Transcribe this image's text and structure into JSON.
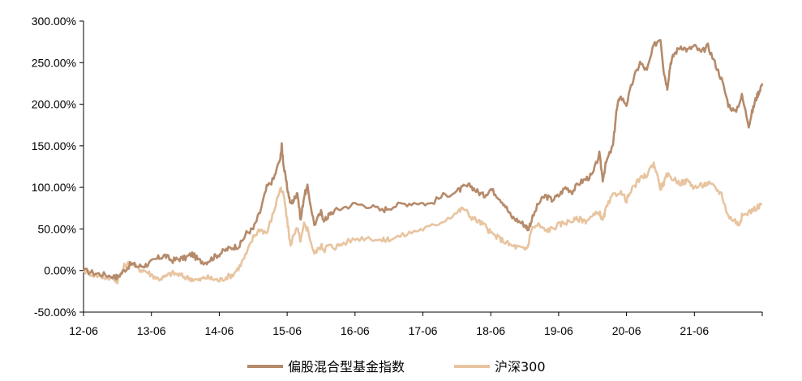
{
  "colors": {
    "series1": "#b58a6a",
    "series2": "#e8c4a0",
    "axis": "#000000"
  },
  "chart_data": {
    "type": "line",
    "title": "",
    "xlabel": "",
    "ylabel": "",
    "x_tick_labels": [
      "12-06",
      "13-06",
      "14-06",
      "15-06",
      "16-06",
      "17-06",
      "18-06",
      "19-06",
      "20-06",
      "21-06"
    ],
    "y_tick_labels": [
      "300.00%",
      "250.00%",
      "200.00%",
      "150.00%",
      "100.00%",
      "50.00%",
      "0.00%",
      "-50.00%"
    ],
    "ylim": [
      -50,
      300
    ],
    "xlim": [
      2012.5,
      2022.5
    ],
    "grid": false,
    "legend_placement": "bottom-center",
    "series": [
      {
        "name": "偏股混合型基金指数",
        "x": [
          2012.5,
          2012.65,
          2012.8,
          2012.95,
          2013.0,
          2013.1,
          2013.2,
          2013.3,
          2013.4,
          2013.5,
          2013.6,
          2013.7,
          2013.8,
          2013.9,
          2014.0,
          2014.1,
          2014.2,
          2014.3,
          2014.4,
          2014.5,
          2014.6,
          2014.7,
          2014.8,
          2014.9,
          2015.0,
          2015.1,
          2015.2,
          2015.3,
          2015.4,
          2015.42,
          2015.45,
          2015.5,
          2015.55,
          2015.6,
          2015.65,
          2015.7,
          2015.75,
          2015.8,
          2015.9,
          2016.0,
          2016.05,
          2016.1,
          2016.15,
          2016.3,
          2016.5,
          2016.7,
          2016.9,
          2017.0,
          2017.2,
          2017.4,
          2017.6,
          2017.8,
          2018.0,
          2018.1,
          2018.2,
          2018.3,
          2018.4,
          2018.5,
          2018.6,
          2018.7,
          2018.8,
          2018.9,
          2019.0,
          2019.05,
          2019.1,
          2019.2,
          2019.3,
          2019.4,
          2019.5,
          2019.6,
          2019.7,
          2019.8,
          2019.9,
          2020.0,
          2020.1,
          2020.15,
          2020.2,
          2020.3,
          2020.35,
          2020.4,
          2020.5,
          2020.6,
          2020.7,
          2020.8,
          2020.9,
          2021.0,
          2021.05,
          2021.1,
          2021.15,
          2021.2,
          2021.3,
          2021.4,
          2021.5,
          2021.6,
          2021.7,
          2021.8,
          2021.9,
          2022.0,
          2022.1,
          2022.2,
          2022.3,
          2022.35,
          2022.4,
          2022.45,
          2022.5
        ],
        "y": [
          0,
          -3,
          -5,
          -7,
          -8,
          0,
          8,
          5,
          6,
          10,
          15,
          18,
          12,
          14,
          15,
          20,
          12,
          10,
          15,
          20,
          25,
          28,
          30,
          45,
          50,
          70,
          100,
          110,
          135,
          150,
          125,
          100,
          80,
          85,
          95,
          60,
          90,
          100,
          55,
          70,
          60,
          65,
          70,
          75,
          80,
          78,
          72,
          76,
          80,
          82,
          80,
          90,
          95,
          100,
          102,
          95,
          90,
          98,
          90,
          80,
          65,
          60,
          55,
          50,
          60,
          80,
          90,
          85,
          90,
          100,
          95,
          105,
          110,
          115,
          140,
          110,
          130,
          150,
          190,
          210,
          200,
          230,
          250,
          240,
          270,
          280,
          240,
          220,
          250,
          260,
          270,
          265,
          270,
          262,
          270,
          250,
          230,
          200,
          190,
          210,
          175,
          190,
          205,
          215,
          225
        ]
      },
      {
        "name": "沪深300",
        "x": [
          2012.5,
          2012.65,
          2012.8,
          2012.95,
          2013.0,
          2013.1,
          2013.2,
          2013.3,
          2013.4,
          2013.5,
          2013.6,
          2013.7,
          2013.8,
          2013.9,
          2014.0,
          2014.1,
          2014.2,
          2014.3,
          2014.4,
          2014.5,
          2014.6,
          2014.7,
          2014.8,
          2014.9,
          2015.0,
          2015.1,
          2015.2,
          2015.3,
          2015.4,
          2015.45,
          2015.5,
          2015.55,
          2015.6,
          2015.65,
          2015.7,
          2015.75,
          2015.8,
          2015.9,
          2016.0,
          2016.05,
          2016.1,
          2016.2,
          2016.3,
          2016.5,
          2016.7,
          2016.9,
          2017.0,
          2017.2,
          2017.4,
          2017.6,
          2017.8,
          2018.0,
          2018.1,
          2018.2,
          2018.3,
          2018.4,
          2018.5,
          2018.6,
          2018.7,
          2018.8,
          2018.9,
          2019.0,
          2019.05,
          2019.1,
          2019.2,
          2019.3,
          2019.4,
          2019.5,
          2019.6,
          2019.7,
          2019.8,
          2019.9,
          2020.0,
          2020.1,
          2020.15,
          2020.2,
          2020.3,
          2020.4,
          2020.5,
          2020.6,
          2020.7,
          2020.8,
          2020.9,
          2021.0,
          2021.05,
          2021.1,
          2021.2,
          2021.3,
          2021.4,
          2021.5,
          2021.6,
          2021.7,
          2021.8,
          2021.9,
          2022.0,
          2022.1,
          2022.15,
          2022.2,
          2022.3,
          2022.4,
          2022.5
        ],
        "y": [
          0,
          -5,
          -8,
          -10,
          -12,
          5,
          10,
          2,
          0,
          -5,
          -10,
          -8,
          -3,
          -5,
          -8,
          -10,
          -12,
          -8,
          -10,
          -12,
          -8,
          -5,
          5,
          20,
          40,
          50,
          45,
          70,
          100,
          90,
          60,
          30,
          45,
          50,
          35,
          55,
          50,
          20,
          30,
          25,
          30,
          28,
          32,
          38,
          40,
          36,
          38,
          42,
          48,
          52,
          60,
          70,
          75,
          65,
          60,
          55,
          45,
          40,
          35,
          30,
          28,
          25,
          30,
          50,
          55,
          48,
          50,
          55,
          58,
          60,
          62,
          60,
          65,
          70,
          60,
          75,
          90,
          95,
          85,
          100,
          110,
          115,
          130,
          100,
          105,
          115,
          110,
          105,
          108,
          100,
          102,
          105,
          100,
          92,
          65,
          60,
          55,
          65,
          70,
          75,
          80
        ]
      }
    ]
  }
}
